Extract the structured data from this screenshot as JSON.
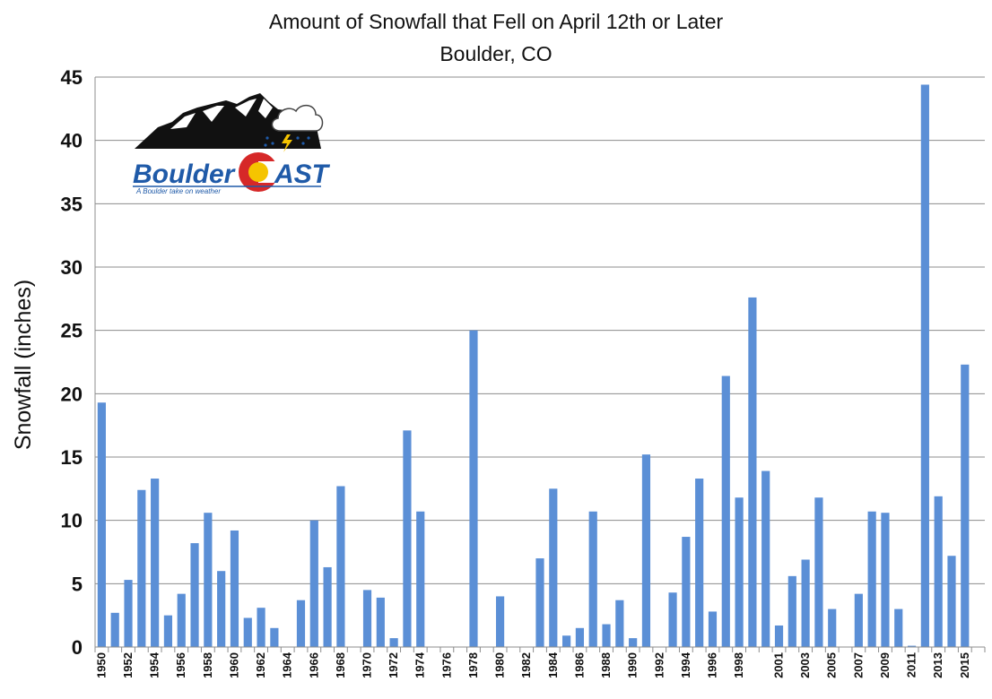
{
  "chart_data": {
    "type": "bar",
    "title": "Amount of Snowfall that Fell on April 12th or Later",
    "subtitle": "Boulder, CO",
    "xlabel": "",
    "ylabel": "Snowfall (inches)",
    "ylim": [
      0,
      45
    ],
    "yticks": [
      "0",
      "5",
      "10",
      "15",
      "20",
      "25",
      "30",
      "35",
      "40",
      "45"
    ],
    "grid": true,
    "bar_color": "#5b8fd6",
    "categories": [
      "1950",
      "1951",
      "1952",
      "1953",
      "1954",
      "1955",
      "1956",
      "1957",
      "1958",
      "1959",
      "1960",
      "1961",
      "1962",
      "1963",
      "1964",
      "1965",
      "1966",
      "1967",
      "1968",
      "1969",
      "1970",
      "1971",
      "1972",
      "1973",
      "1974",
      "1975",
      "1976",
      "1977",
      "1978",
      "1979",
      "1980",
      "1981",
      "1982",
      "1983",
      "1984",
      "1985",
      "1986",
      "1987",
      "1988",
      "1989",
      "1990",
      "1991",
      "1992",
      "1993",
      "1994",
      "1995",
      "1996",
      "1997",
      "1998",
      "1999",
      "2000",
      "2001",
      "2002",
      "2003",
      "2004",
      "2005",
      "2006",
      "2007",
      "2008",
      "2009",
      "2010",
      "2011",
      "2012",
      "2013",
      "2014",
      "2015",
      "2016"
    ],
    "tick_labels": [
      "1950",
      "1952",
      "1954",
      "1956",
      "1958",
      "1960",
      "1962",
      "1964",
      "1966",
      "1968",
      "1970",
      "1972",
      "1974",
      "1976",
      "1978",
      "1980",
      "1982",
      "1984",
      "1986",
      "1988",
      "1990",
      "1992",
      "1994",
      "1996",
      "1998",
      "2001",
      "2003",
      "2005",
      "2007",
      "2009",
      "2011",
      "2013",
      "2015"
    ],
    "values": [
      19.3,
      2.7,
      5.3,
      12.4,
      13.3,
      2.5,
      4.2,
      8.2,
      10.6,
      6.0,
      9.2,
      2.3,
      3.1,
      1.5,
      0,
      3.7,
      10.0,
      6.3,
      12.7,
      0,
      4.5,
      3.9,
      0.7,
      17.1,
      10.7,
      0,
      0,
      0,
      25.0,
      0,
      4.0,
      0,
      0,
      7.0,
      12.5,
      0.9,
      1.5,
      10.7,
      1.8,
      3.7,
      0.7,
      15.2,
      0,
      4.3,
      8.7,
      13.3,
      2.8,
      21.4,
      11.8,
      27.6,
      13.9,
      1.7,
      5.6,
      6.9,
      11.8,
      3.0,
      0,
      4.2,
      10.7,
      10.6,
      3.0,
      0.1,
      44.4,
      11.9,
      7.2,
      22.3,
      0
    ]
  },
  "logo": {
    "name_left": "Boulder",
    "name_right": "AST",
    "tagline": "A Boulder take on weather",
    "colors": {
      "blue": "#1f5aa8",
      "red": "#d62828",
      "yellow": "#f5c400",
      "mountain": "#111111"
    }
  }
}
